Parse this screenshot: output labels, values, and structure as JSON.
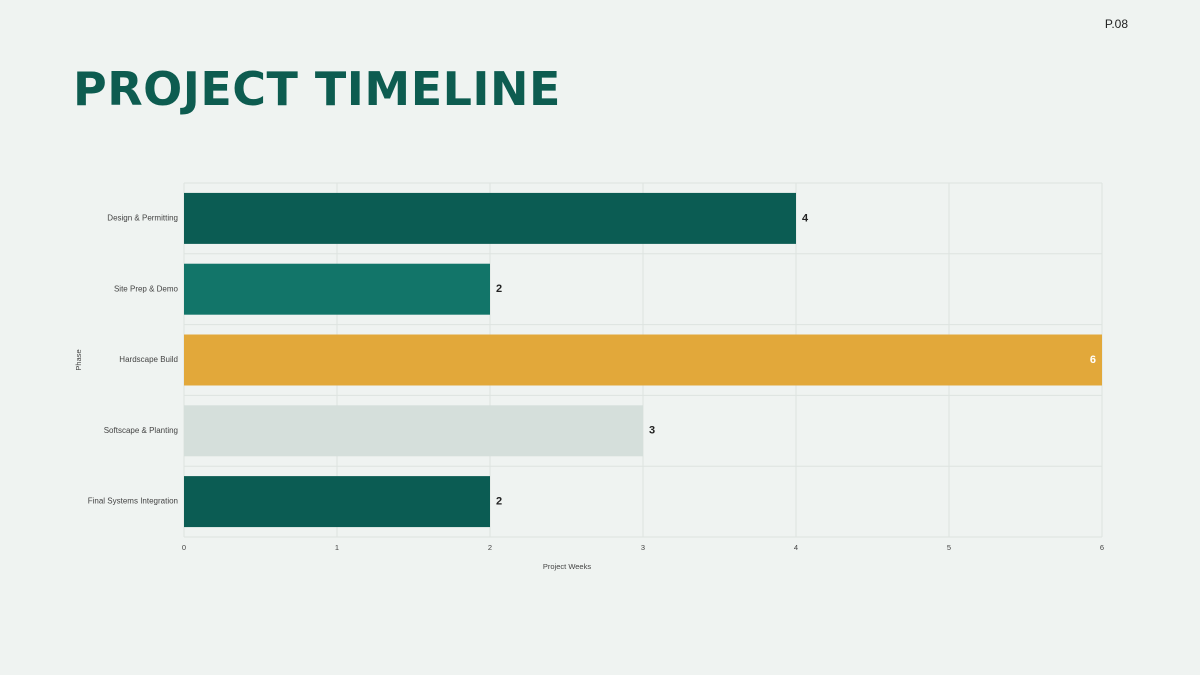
{
  "page_number": "P.08",
  "title": "PROJECT TIMELINE",
  "chart_data": {
    "type": "bar",
    "orientation": "horizontal",
    "x_label": "Project Weeks",
    "y_label": "Phase",
    "categories": [
      "Design & Permitting",
      "Site Prep & Demo",
      "Hardscape Build",
      "Softscape & Planting",
      "Final Systems Integration"
    ],
    "values": [
      4,
      2,
      6,
      3,
      2
    ],
    "colors": [
      "#0b5c53",
      "#127569",
      "#e2a83a",
      "#d5dfdb",
      "#0b5c53"
    ],
    "xlim": [
      0,
      6
    ],
    "xticks": [
      0,
      1,
      2,
      3,
      4,
      5,
      6
    ],
    "grid": true
  }
}
